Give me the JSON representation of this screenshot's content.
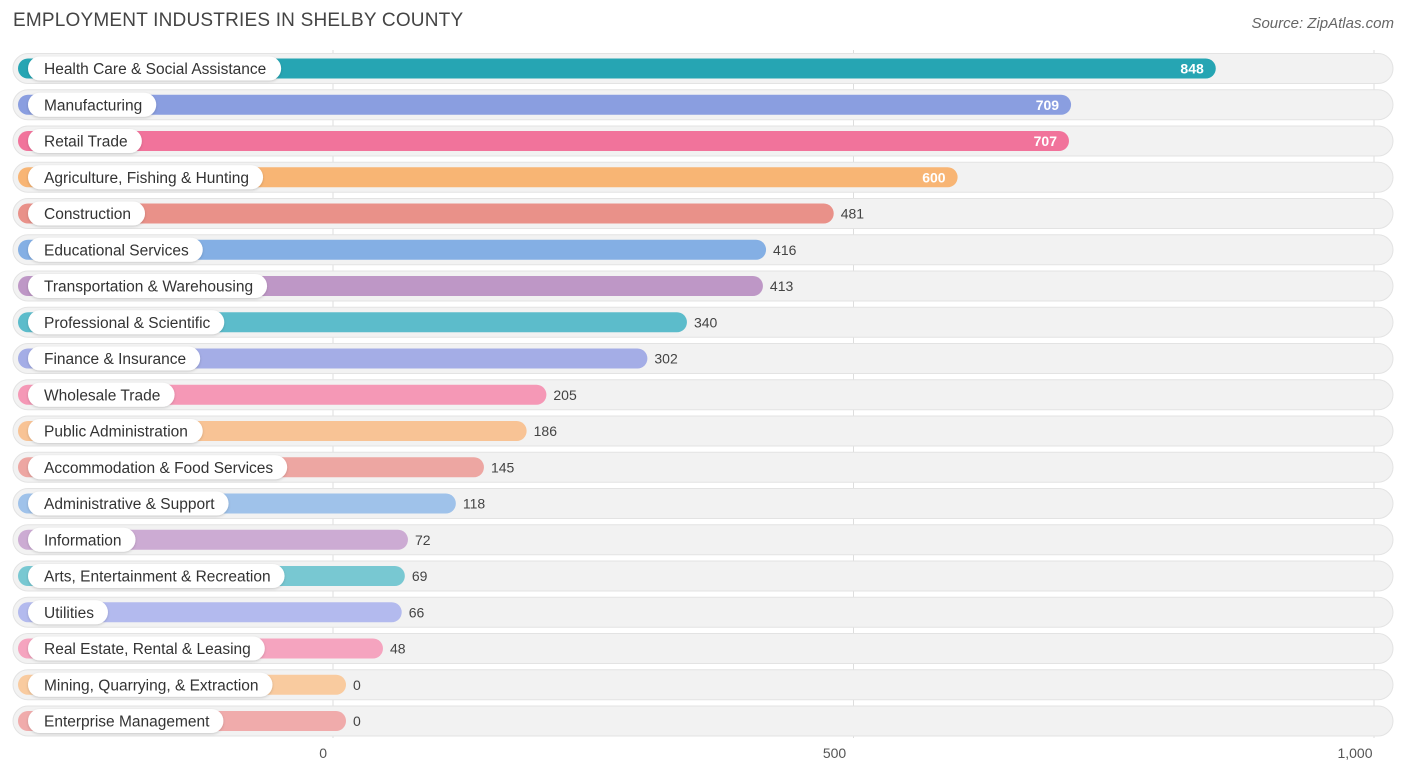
{
  "header": {
    "title": "EMPLOYMENT INDUSTRIES IN SHELBY COUNTY",
    "source": "Source: ZipAtlas.com"
  },
  "chart_data": {
    "type": "bar",
    "orientation": "horizontal",
    "title": "EMPLOYMENT INDUSTRIES IN SHELBY COUNTY",
    "xlabel": "",
    "ylabel": "",
    "xlim": [
      0,
      1000
    ],
    "grid": true,
    "ticks": [
      {
        "value": 0,
        "label": "0"
      },
      {
        "value": 500,
        "label": "500"
      },
      {
        "value": 1000,
        "label": "1,000"
      }
    ],
    "categories": [
      "Health Care & Social Assistance",
      "Manufacturing",
      "Retail Trade",
      "Agriculture, Fishing & Hunting",
      "Construction",
      "Educational Services",
      "Transportation & Warehousing",
      "Professional & Scientific",
      "Finance & Insurance",
      "Wholesale Trade",
      "Public Administration",
      "Accommodation & Food Services",
      "Administrative & Support",
      "Information",
      "Arts, Entertainment & Recreation",
      "Utilities",
      "Real Estate, Rental & Leasing",
      "Mining, Quarrying, & Extraction",
      "Enterprise Management"
    ],
    "values": [
      848,
      709,
      707,
      600,
      481,
      416,
      413,
      340,
      302,
      205,
      186,
      145,
      118,
      72,
      69,
      66,
      48,
      0,
      0
    ],
    "value_labels": [
      "848",
      "709",
      "707",
      "600",
      "481",
      "416",
      "413",
      "340",
      "302",
      "205",
      "186",
      "145",
      "118",
      "72",
      "69",
      "66",
      "48",
      "0",
      "0"
    ],
    "colors": [
      "#26a5b3",
      "#8a9ee0",
      "#f1739b",
      "#f8b574",
      "#e99189",
      "#84afe4",
      "#be97c6",
      "#5cbccb",
      "#a4ade6",
      "#f598b6",
      "#f8c395",
      "#eda6a2",
      "#9fc2ea",
      "#ccabd3",
      "#78c8d2",
      "#b3baee",
      "#f5a4bf",
      "#f9cb9f",
      "#f0abab"
    ]
  }
}
